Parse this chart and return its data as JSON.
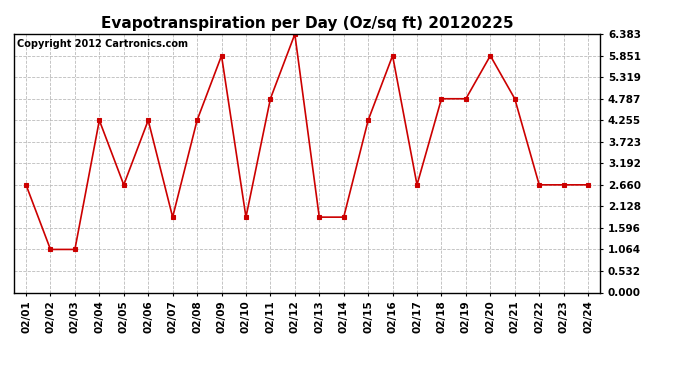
{
  "title": "Evapotranspiration per Day (Oz/sq ft) 20120225",
  "copyright": "Copyright 2012 Cartronics.com",
  "dates": [
    "02/01",
    "02/02",
    "02/03",
    "02/04",
    "02/05",
    "02/06",
    "02/07",
    "02/08",
    "02/09",
    "02/10",
    "02/11",
    "02/12",
    "02/13",
    "02/14",
    "02/15",
    "02/16",
    "02/17",
    "02/18",
    "02/19",
    "02/20",
    "02/21",
    "02/22",
    "02/23",
    "02/24"
  ],
  "values": [
    2.66,
    1.064,
    1.064,
    4.255,
    2.66,
    4.255,
    1.862,
    4.255,
    5.851,
    1.862,
    4.787,
    6.383,
    1.862,
    1.862,
    4.255,
    5.851,
    2.66,
    4.787,
    4.787,
    5.851,
    4.787,
    2.66,
    2.66,
    2.66
  ],
  "line_color": "#CC0000",
  "marker_color": "#CC0000",
  "bg_color": "#FFFFFF",
  "grid_color": "#BBBBBB",
  "yticks": [
    0.0,
    0.532,
    1.064,
    1.596,
    2.128,
    2.66,
    3.192,
    3.723,
    4.255,
    4.787,
    5.319,
    5.851,
    6.383
  ],
  "ylim": [
    0.0,
    6.383
  ],
  "title_fontsize": 11,
  "copyright_fontsize": 7,
  "tick_fontsize": 7.5
}
